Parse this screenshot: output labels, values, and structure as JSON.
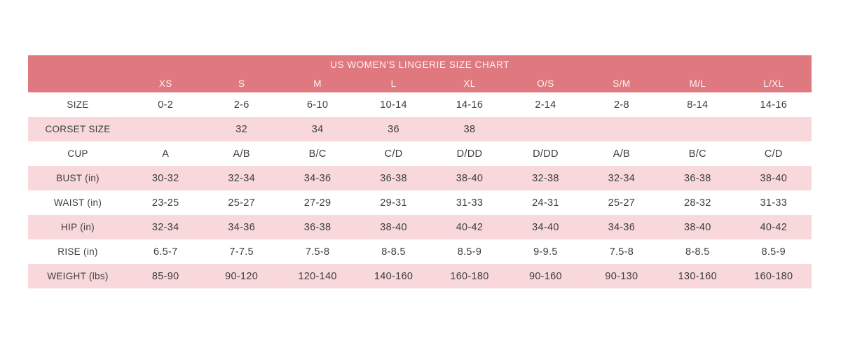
{
  "chart_data": {
    "type": "table",
    "title": "US WOMEN'S LINGERIE SIZE CHART",
    "columns": [
      "XS",
      "S",
      "M",
      "L",
      "XL",
      "O/S",
      "S/M",
      "M/L",
      "L/XL"
    ],
    "rows": [
      {
        "label": "SIZE",
        "values": [
          "0-2",
          "2-6",
          "6-10",
          "10-14",
          "14-16",
          "2-14",
          "2-8",
          "8-14",
          "14-16"
        ]
      },
      {
        "label": "CORSET SIZE",
        "values": [
          "",
          "32",
          "34",
          "36",
          "38",
          "",
          "",
          "",
          ""
        ]
      },
      {
        "label": "CUP",
        "values": [
          "A",
          "A/B",
          "B/C",
          "C/D",
          "D/DD",
          "D/DD",
          "A/B",
          "B/C",
          "C/D"
        ]
      },
      {
        "label": "BUST (in)",
        "values": [
          "30-32",
          "32-34",
          "34-36",
          "36-38",
          "38-40",
          "32-38",
          "32-34",
          "36-38",
          "38-40"
        ]
      },
      {
        "label": "WAIST (in)",
        "values": [
          "23-25",
          "25-27",
          "27-29",
          "29-31",
          "31-33",
          "24-31",
          "25-27",
          "28-32",
          "31-33"
        ]
      },
      {
        "label": "HIP (in)",
        "values": [
          "32-34",
          "34-36",
          "36-38",
          "38-40",
          "40-42",
          "34-40",
          "34-36",
          "38-40",
          "40-42"
        ]
      },
      {
        "label": "RISE (in)",
        "values": [
          "6.5-7",
          "7-7.5",
          "7.5-8",
          "8-8.5",
          "8.5-9",
          "9-9.5",
          "7.5-8",
          "8-8.5",
          "8.5-9"
        ]
      },
      {
        "label": "WEIGHT (lbs)",
        "values": [
          "85-90",
          "90-120",
          "120-140",
          "140-160",
          "160-180",
          "90-160",
          "90-130",
          "130-160",
          "160-180"
        ]
      }
    ],
    "layout": {
      "row_striping": "white-pink alternating",
      "legend": "none",
      "grid": "off"
    }
  },
  "colors": {
    "header_bg": "#e0787f",
    "header_text": "#fdf4f4",
    "row_alt_bg": "#f8d8db",
    "row_bg": "#ffffff",
    "cell_text": "#3d3d3d",
    "page_bg": "#ffffff"
  }
}
